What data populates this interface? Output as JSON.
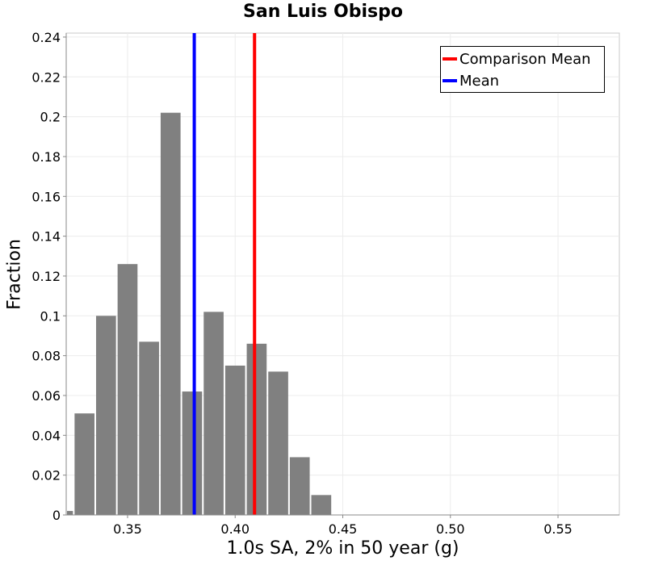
{
  "chart_data": {
    "type": "bar",
    "title": "San Luis Obispo",
    "xlabel": "1.0s SA, 2% in 50 year (g)",
    "ylabel": "Fraction",
    "xlim": [
      0.3215,
      0.5785
    ],
    "ylim": [
      0,
      0.242
    ],
    "bin_width": 0.01,
    "bin_centers": [
      0.32,
      0.33,
      0.34,
      0.35,
      0.36,
      0.37,
      0.38,
      0.39,
      0.4,
      0.41,
      0.42,
      0.43,
      0.44
    ],
    "values": [
      0.002,
      0.051,
      0.1,
      0.126,
      0.087,
      0.202,
      0.062,
      0.102,
      0.075,
      0.086,
      0.072,
      0.029,
      0.01
    ],
    "x_ticks": [
      0.35,
      0.4,
      0.45,
      0.5,
      0.55
    ],
    "x_tick_labels": [
      "0.35",
      "0.40",
      "0.45",
      "0.50",
      "0.55"
    ],
    "y_ticks": [
      0,
      0.02,
      0.04,
      0.06,
      0.08,
      0.1,
      0.12,
      0.14,
      0.16,
      0.18,
      0.2,
      0.22,
      0.24
    ],
    "y_tick_labels": [
      "0",
      "0.02",
      "0.04",
      "0.06",
      "0.08",
      "0.1",
      "0.12",
      "0.14",
      "0.16",
      "0.18",
      "0.2",
      "0.22",
      "0.24"
    ],
    "vlines": [
      {
        "name": "Comparison Mean",
        "x": 0.409,
        "color": "#ff0000"
      },
      {
        "name": "Mean",
        "x": 0.381,
        "color": "#0000ff"
      }
    ],
    "bar_color": "#808080",
    "grid": true,
    "legend_position": "top-right"
  }
}
